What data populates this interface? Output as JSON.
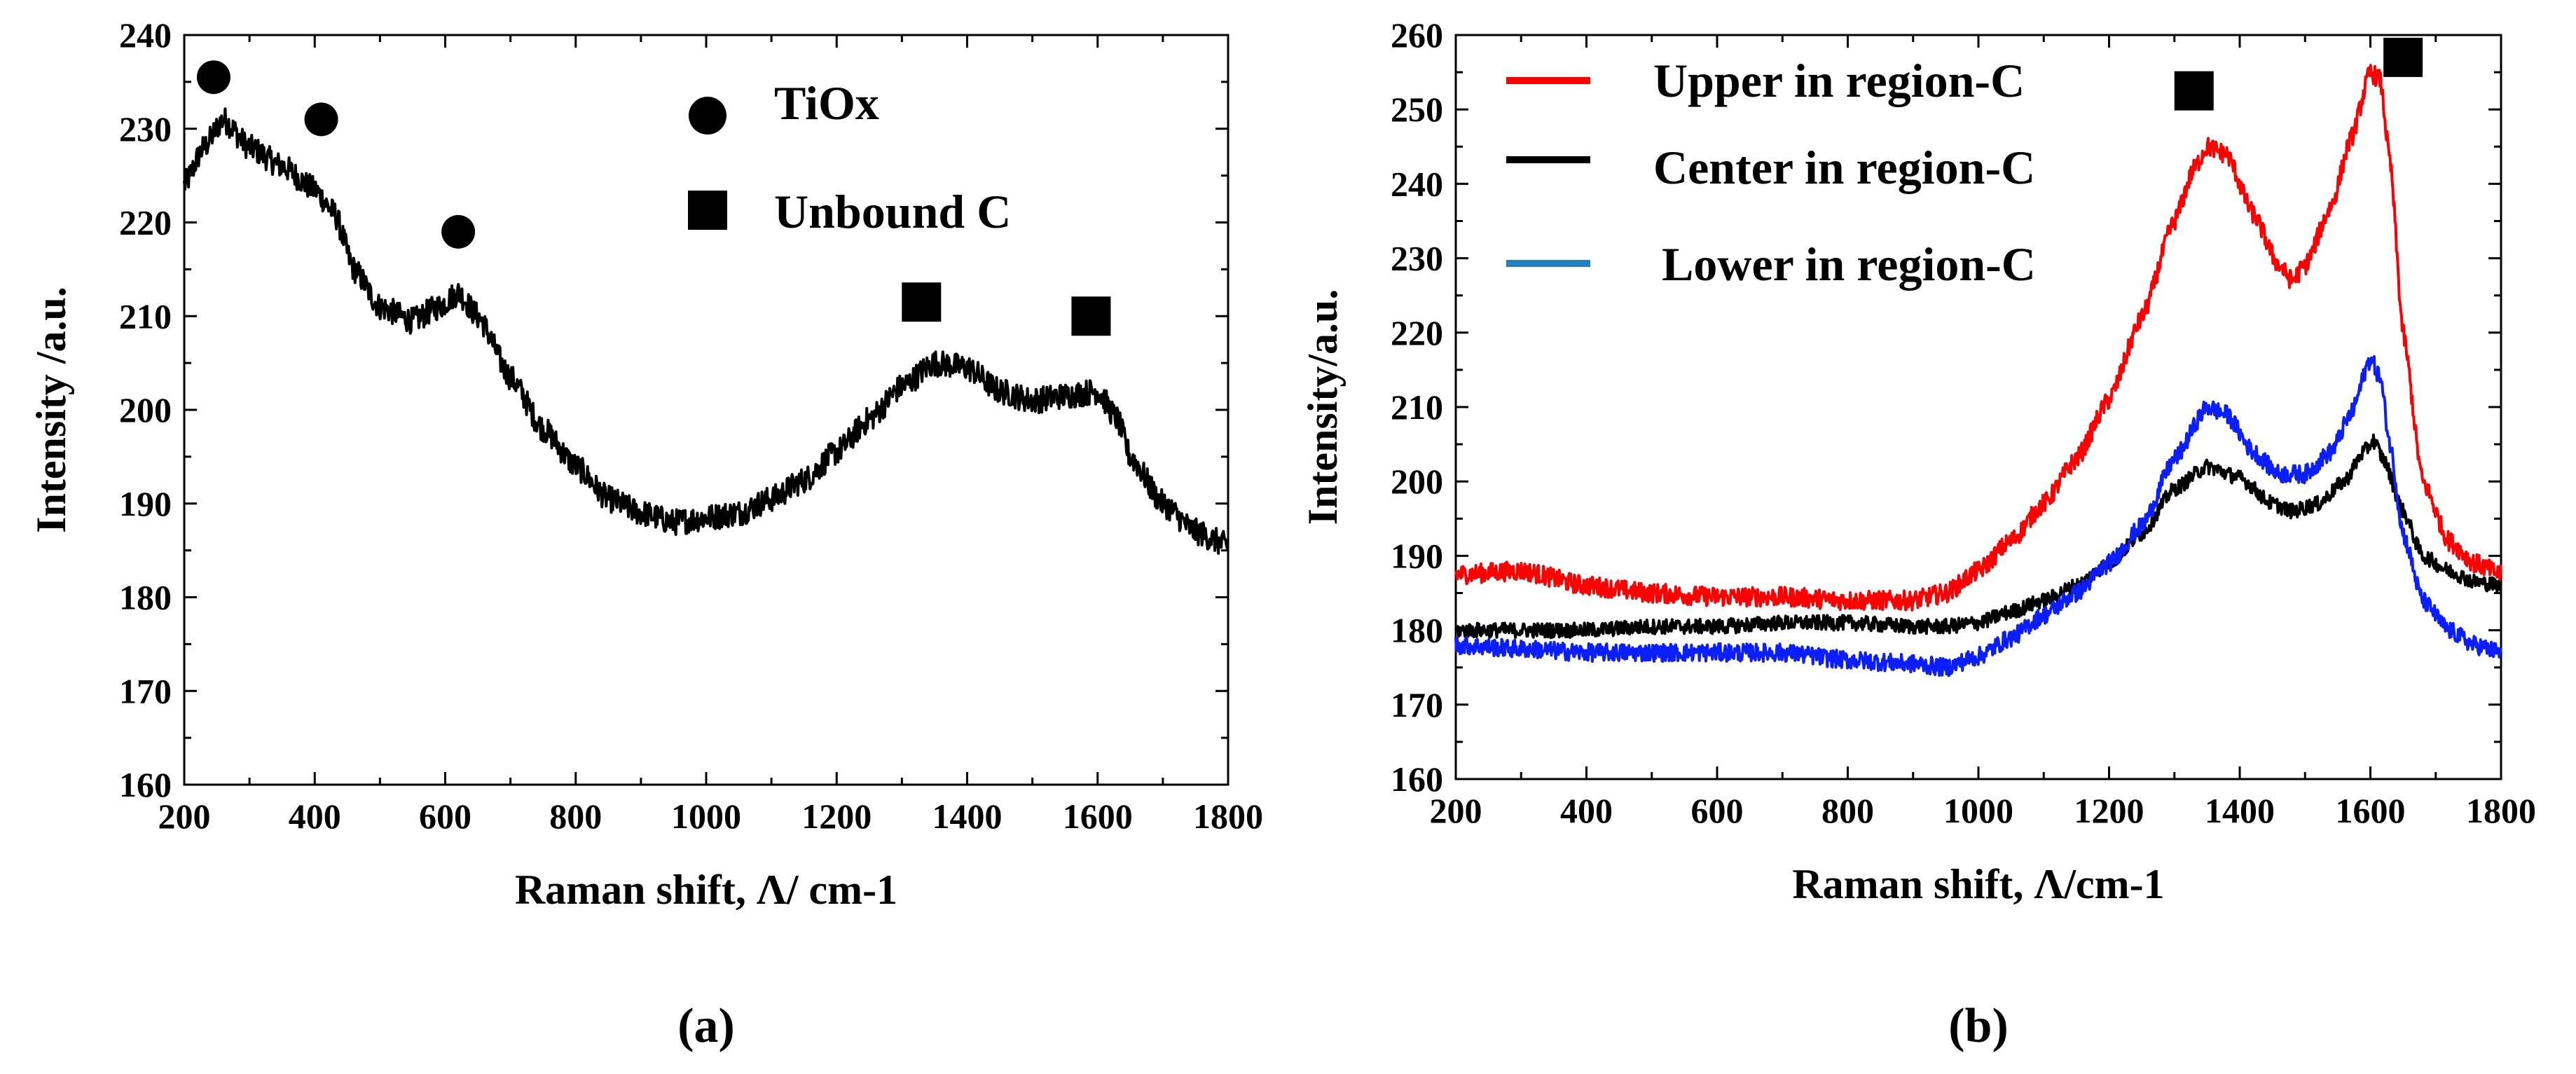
{
  "chart_data": [
    {
      "type": "line",
      "panel_label": "(a)",
      "xlabel": "Raman shift, Λ/ cm-1",
      "ylabel": "Intensity /a.u.",
      "xlim": [
        200,
        1800
      ],
      "ylim": [
        160,
        240
      ],
      "xticks": [
        200,
        400,
        600,
        800,
        1000,
        1200,
        1400,
        1600,
        1800
      ],
      "yticks": [
        160,
        170,
        180,
        190,
        200,
        210,
        220,
        230,
        240
      ],
      "grid": false,
      "legend": [
        {
          "marker": "circle",
          "label": "TiOx"
        },
        {
          "marker": "square",
          "label": "Unbound C"
        }
      ],
      "markers": [
        {
          "shape": "circle",
          "x": 245,
          "y": 235.5
        },
        {
          "shape": "circle",
          "x": 410,
          "y": 231
        },
        {
          "shape": "circle",
          "x": 620,
          "y": 219
        },
        {
          "shape": "square",
          "x": 1330,
          "y": 211.5
        },
        {
          "shape": "square",
          "x": 1590,
          "y": 210
        }
      ],
      "series": [
        {
          "name": "spectrum",
          "color": "#000000",
          "noise": 1.4,
          "points": [
            [
              200,
              224
            ],
            [
              230,
              228
            ],
            [
              260,
              231
            ],
            [
              300,
              228
            ],
            [
              350,
              226
            ],
            [
              400,
              223.5
            ],
            [
              430,
              221
            ],
            [
              460,
              215
            ],
            [
              500,
              211
            ],
            [
              550,
              209.5
            ],
            [
              590,
              211
            ],
            [
              620,
              212.5
            ],
            [
              650,
              210
            ],
            [
              700,
              203.5
            ],
            [
              750,
              198
            ],
            [
              800,
              194
            ],
            [
              850,
              190.5
            ],
            [
              900,
              189
            ],
            [
              950,
              188
            ],
            [
              1000,
              188.5
            ],
            [
              1050,
              189
            ],
            [
              1100,
              190.5
            ],
            [
              1150,
              192.5
            ],
            [
              1200,
              195.5
            ],
            [
              1250,
              199
            ],
            [
              1300,
              202.5
            ],
            [
              1350,
              205
            ],
            [
              1400,
              204.5
            ],
            [
              1450,
              202
            ],
            [
              1500,
              201
            ],
            [
              1550,
              201.5
            ],
            [
              1600,
              202
            ],
            [
              1630,
              199
            ],
            [
              1650,
              195
            ],
            [
              1700,
              190
            ],
            [
              1750,
              187
            ],
            [
              1800,
              185.5
            ]
          ]
        }
      ]
    },
    {
      "type": "line",
      "panel_label": "(b)",
      "xlabel": "Raman shift, Λ/cm-1",
      "ylabel": "Intensity/a.u.",
      "xlim": [
        200,
        1800
      ],
      "ylim": [
        160,
        260
      ],
      "xticks": [
        200,
        400,
        600,
        800,
        1000,
        1200,
        1400,
        1600,
        1800
      ],
      "yticks": [
        160,
        170,
        180,
        190,
        200,
        210,
        220,
        230,
        240,
        250,
        260
      ],
      "grid": false,
      "legend": [
        {
          "color": "#ff0000",
          "label": "Upper in region-C"
        },
        {
          "color": "#000000",
          "label": "Center in region-C"
        },
        {
          "color": "#1f7fc4",
          "label": "Lower in region-C"
        }
      ],
      "markers": [
        {
          "shape": "square",
          "x": 1330,
          "y": 252.5
        },
        {
          "shape": "square",
          "x": 1650,
          "y": 257
        }
      ],
      "series": [
        {
          "name": "Upper in region-C",
          "color": "#ff0000",
          "noise": 1.3,
          "points": [
            [
              200,
              187.5
            ],
            [
              300,
              188
            ],
            [
              400,
              186
            ],
            [
              500,
              185
            ],
            [
              600,
              184.5
            ],
            [
              700,
              184.5
            ],
            [
              800,
              184
            ],
            [
              900,
              184
            ],
            [
              950,
              185
            ],
            [
              1000,
              188
            ],
            [
              1050,
              192
            ],
            [
              1100,
              197
            ],
            [
              1150,
              203
            ],
            [
              1200,
              211
            ],
            [
              1250,
              222
            ],
            [
              1300,
              235
            ],
            [
              1330,
              242
            ],
            [
              1350,
              245
            ],
            [
              1380,
              244
            ],
            [
              1420,
              236
            ],
            [
              1460,
              229
            ],
            [
              1480,
              227
            ],
            [
              1500,
              229
            ],
            [
              1540,
              237
            ],
            [
              1570,
              246
            ],
            [
              1600,
              255
            ],
            [
              1615,
              254
            ],
            [
              1630,
              243
            ],
            [
              1650,
              220
            ],
            [
              1680,
              200
            ],
            [
              1720,
              192
            ],
            [
              1760,
              189
            ],
            [
              1800,
              187.5
            ]
          ]
        },
        {
          "name": "Center in region-C",
          "color": "#000000",
          "noise": 1.0,
          "points": [
            [
              200,
              180
            ],
            [
              300,
              180
            ],
            [
              400,
              180
            ],
            [
              500,
              180.5
            ],
            [
              600,
              180.5
            ],
            [
              700,
              181
            ],
            [
              800,
              181
            ],
            [
              900,
              180.5
            ],
            [
              950,
              180.5
            ],
            [
              1000,
              181
            ],
            [
              1050,
              182.5
            ],
            [
              1100,
              184
            ],
            [
              1150,
              186
            ],
            [
              1200,
              189
            ],
            [
              1250,
              193
            ],
            [
              1300,
              199
            ],
            [
              1350,
              202
            ],
            [
              1400,
              200.5
            ],
            [
              1450,
              197
            ],
            [
              1480,
              196
            ],
            [
              1520,
              197
            ],
            [
              1560,
              200
            ],
            [
              1590,
              204
            ],
            [
              1605,
              205.5
            ],
            [
              1620,
              203
            ],
            [
              1650,
              196
            ],
            [
              1680,
              190
            ],
            [
              1720,
              188
            ],
            [
              1760,
              186.5
            ],
            [
              1800,
              186
            ]
          ]
        },
        {
          "name": "Lower in region-C",
          "color": "#0a1eff",
          "noise": 1.2,
          "points": [
            [
              200,
              178
            ],
            [
              300,
              177.5
            ],
            [
              400,
              177
            ],
            [
              500,
              177
            ],
            [
              600,
              177
            ],
            [
              700,
              177
            ],
            [
              800,
              176
            ],
            [
              900,
              175.5
            ],
            [
              950,
              175
            ],
            [
              1000,
              176.5
            ],
            [
              1050,
              179
            ],
            [
              1100,
              182
            ],
            [
              1150,
              185
            ],
            [
              1200,
              189
            ],
            [
              1250,
              194
            ],
            [
              1300,
              203
            ],
            [
              1350,
              210
            ],
            [
              1380,
              209
            ],
            [
              1420,
              204
            ],
            [
              1460,
              201
            ],
            [
              1500,
              201
            ],
            [
              1540,
              204
            ],
            [
              1570,
              209
            ],
            [
              1600,
              216.5
            ],
            [
              1615,
              214
            ],
            [
              1630,
              205
            ],
            [
              1650,
              193
            ],
            [
              1680,
              184
            ],
            [
              1720,
              180
            ],
            [
              1760,
              178
            ],
            [
              1800,
              177
            ]
          ]
        }
      ]
    }
  ]
}
